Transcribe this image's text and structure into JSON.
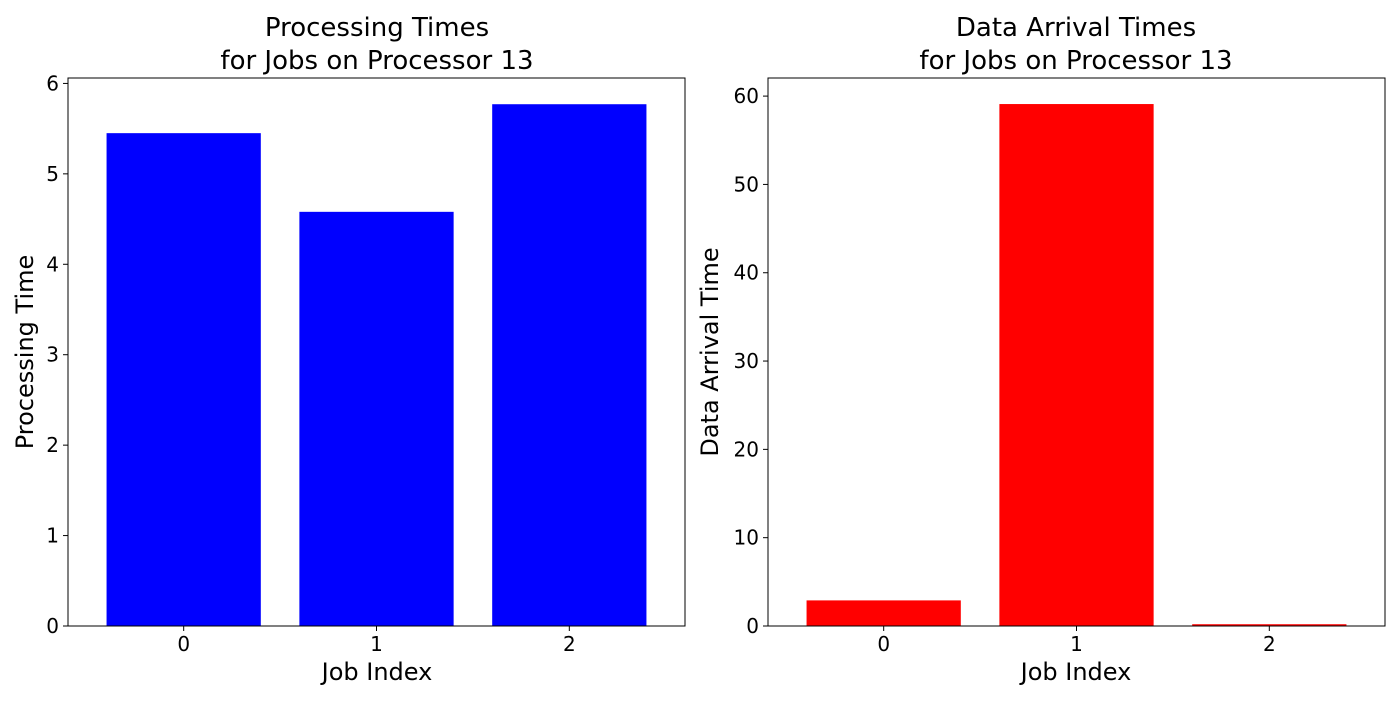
{
  "chart_data": [
    {
      "type": "bar",
      "title_lines": [
        "Processing Times",
        "for Jobs on Processor 13"
      ],
      "xlabel": "Job Index",
      "ylabel": "Processing Time",
      "categories": [
        "0",
        "1",
        "2"
      ],
      "values": [
        5.45,
        4.58,
        5.77
      ],
      "ylim": [
        0,
        6.06
      ],
      "yticks": [
        0,
        1,
        2,
        3,
        4,
        5,
        6
      ],
      "grid": false,
      "color": "#0000ff"
    },
    {
      "type": "bar",
      "title_lines": [
        "Data Arrival Times",
        "for Jobs on Processor 13"
      ],
      "xlabel": "Job Index",
      "ylabel": "Data Arrival Time",
      "categories": [
        "0",
        "1",
        "2"
      ],
      "values": [
        2.9,
        59.1,
        0.2
      ],
      "ylim": [
        0,
        62.05
      ],
      "yticks": [
        0,
        10,
        20,
        30,
        40,
        50,
        60
      ],
      "grid": false,
      "color": "#ff0000"
    }
  ]
}
